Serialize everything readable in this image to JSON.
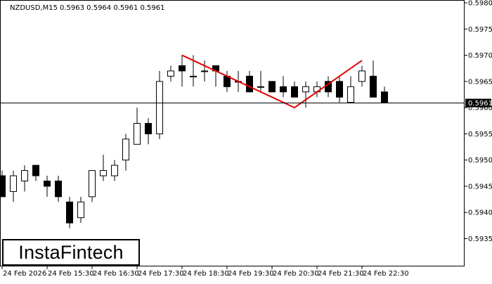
{
  "header": {
    "symbol_label": "NZDUSD,M15",
    "ohlc_label": "0.5963 0.5964 0.5961 0.5961"
  },
  "brand": {
    "name": "InstaFintech"
  },
  "colors": {
    "candle_bull_fill": "#ffffff",
    "candle_bear_fill": "#000000",
    "pattern_line": "#e00000",
    "price_line": "#000000"
  },
  "chart_data": {
    "type": "candlestick",
    "symbol": "NZDUSD",
    "timeframe": "M15",
    "y_ticks": [
      "0.5980",
      "0.5975",
      "0.5970",
      "0.5965",
      "0.5960",
      "0.5955",
      "0.5950",
      "0.5945",
      "0.5940",
      "0.5935"
    ],
    "ylim": [
      0.59305,
      0.59805
    ],
    "x_ticks": [
      "24 Feb 2026",
      "24 Feb 15:30",
      "24 Feb 16:30",
      "24 Feb 17:30",
      "24 Feb 18:30",
      "24 Feb 19:30",
      "24 Feb 20:30",
      "24 Feb 21:30",
      "24 Feb 22:30"
    ],
    "current_price": "0.5961",
    "candles": [
      {
        "o": 0.5947,
        "h": 0.5948,
        "l": 0.5943,
        "c": 0.5943
      },
      {
        "o": 0.5944,
        "h": 0.5948,
        "l": 0.5942,
        "c": 0.5947
      },
      {
        "o": 0.5946,
        "h": 0.5949,
        "l": 0.5944,
        "c": 0.5948
      },
      {
        "o": 0.5949,
        "h": 0.5949,
        "l": 0.5946,
        "c": 0.5947
      },
      {
        "o": 0.5946,
        "h": 0.5947,
        "l": 0.5943,
        "c": 0.5945
      },
      {
        "o": 0.5946,
        "h": 0.5947,
        "l": 0.5942,
        "c": 0.5943
      },
      {
        "o": 0.5942,
        "h": 0.5943,
        "l": 0.5937,
        "c": 0.5938
      },
      {
        "o": 0.5939,
        "h": 0.5943,
        "l": 0.5938,
        "c": 0.5942
      },
      {
        "o": 0.5943,
        "h": 0.5948,
        "l": 0.5942,
        "c": 0.5948
      },
      {
        "o": 0.5947,
        "h": 0.5951,
        "l": 0.5946,
        "c": 0.5948
      },
      {
        "o": 0.5947,
        "h": 0.595,
        "l": 0.5946,
        "c": 0.5949
      },
      {
        "o": 0.595,
        "h": 0.5955,
        "l": 0.5948,
        "c": 0.5954
      },
      {
        "o": 0.5953,
        "h": 0.596,
        "l": 0.5953,
        "c": 0.5957
      },
      {
        "o": 0.5957,
        "h": 0.5958,
        "l": 0.5953,
        "c": 0.5955
      },
      {
        "o": 0.5955,
        "h": 0.5967,
        "l": 0.5954,
        "c": 0.5965
      },
      {
        "o": 0.5966,
        "h": 0.5968,
        "l": 0.5965,
        "c": 0.5967
      },
      {
        "o": 0.5968,
        "h": 0.597,
        "l": 0.5964,
        "c": 0.5967
      },
      {
        "o": 0.5966,
        "h": 0.597,
        "l": 0.5964,
        "c": 0.5966
      },
      {
        "o": 0.5967,
        "h": 0.5969,
        "l": 0.5965,
        "c": 0.5967
      },
      {
        "o": 0.5968,
        "h": 0.5968,
        "l": 0.5964,
        "c": 0.5967
      },
      {
        "o": 0.5966,
        "h": 0.5967,
        "l": 0.5963,
        "c": 0.5964
      },
      {
        "o": 0.5965,
        "h": 0.5967,
        "l": 0.5963,
        "c": 0.5965
      },
      {
        "o": 0.5966,
        "h": 0.5967,
        "l": 0.5963,
        "c": 0.5963
      },
      {
        "o": 0.5964,
        "h": 0.5967,
        "l": 0.5963,
        "c": 0.5964
      },
      {
        "o": 0.5965,
        "h": 0.5965,
        "l": 0.5963,
        "c": 0.5963
      },
      {
        "o": 0.5964,
        "h": 0.5966,
        "l": 0.5962,
        "c": 0.5963
      },
      {
        "o": 0.5964,
        "h": 0.5965,
        "l": 0.5962,
        "c": 0.5962
      },
      {
        "o": 0.5963,
        "h": 0.5965,
        "l": 0.596,
        "c": 0.5964
      },
      {
        "o": 0.5963,
        "h": 0.5965,
        "l": 0.5962,
        "c": 0.5964
      },
      {
        "o": 0.5965,
        "h": 0.5966,
        "l": 0.5962,
        "c": 0.5963
      },
      {
        "o": 0.5965,
        "h": 0.5966,
        "l": 0.5961,
        "c": 0.5962
      },
      {
        "o": 0.5961,
        "h": 0.5966,
        "l": 0.5961,
        "c": 0.5964
      },
      {
        "o": 0.5965,
        "h": 0.5968,
        "l": 0.5964,
        "c": 0.5967
      },
      {
        "o": 0.5966,
        "h": 0.5969,
        "l": 0.5962,
        "c": 0.5962
      },
      {
        "o": 0.5963,
        "h": 0.5964,
        "l": 0.5961,
        "c": 0.5961
      }
    ],
    "pattern": {
      "points": [
        {
          "candle": 16,
          "price": 0.597
        },
        {
          "candle": 26,
          "price": 0.596
        },
        {
          "candle": 32,
          "price": 0.5969
        }
      ]
    }
  }
}
